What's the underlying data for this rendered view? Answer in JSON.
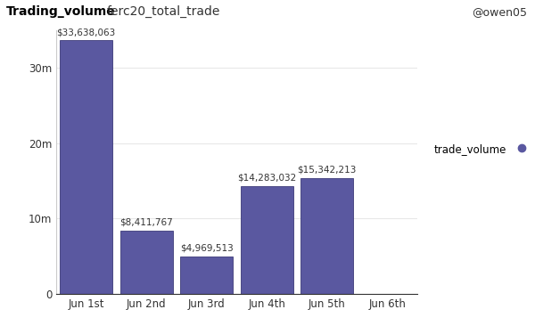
{
  "chart_data": {
    "type": "bar",
    "title": "Trading_volume",
    "subtitle": "ferc20_total_trade",
    "annotations": [
      "@owen05"
    ],
    "categories": [
      "Jun 1st",
      "Jun 2nd",
      "Jun 3rd",
      "Jun 4th",
      "Jun 5th",
      "Jun 6th"
    ],
    "series": [
      {
        "name": "trade_volume",
        "color": "#5a58a0",
        "values": [
          33638063,
          8411767,
          4969513,
          14283032,
          15342213,
          null
        ],
        "value_labels": [
          "$33,638,063",
          "$8,411,767",
          "$4,969,513",
          "$14,283,032",
          "$15,342,213",
          null
        ]
      }
    ],
    "ylim": [
      0,
      35000000
    ],
    "yticks": [
      0,
      {
        "value": 10000000,
        "label": "10m"
      },
      {
        "value": 20000000,
        "label": "20m"
      },
      {
        "value": 30000000,
        "label": "30m"
      }
    ],
    "grid": true,
    "data_labels": true,
    "legend": "right"
  }
}
